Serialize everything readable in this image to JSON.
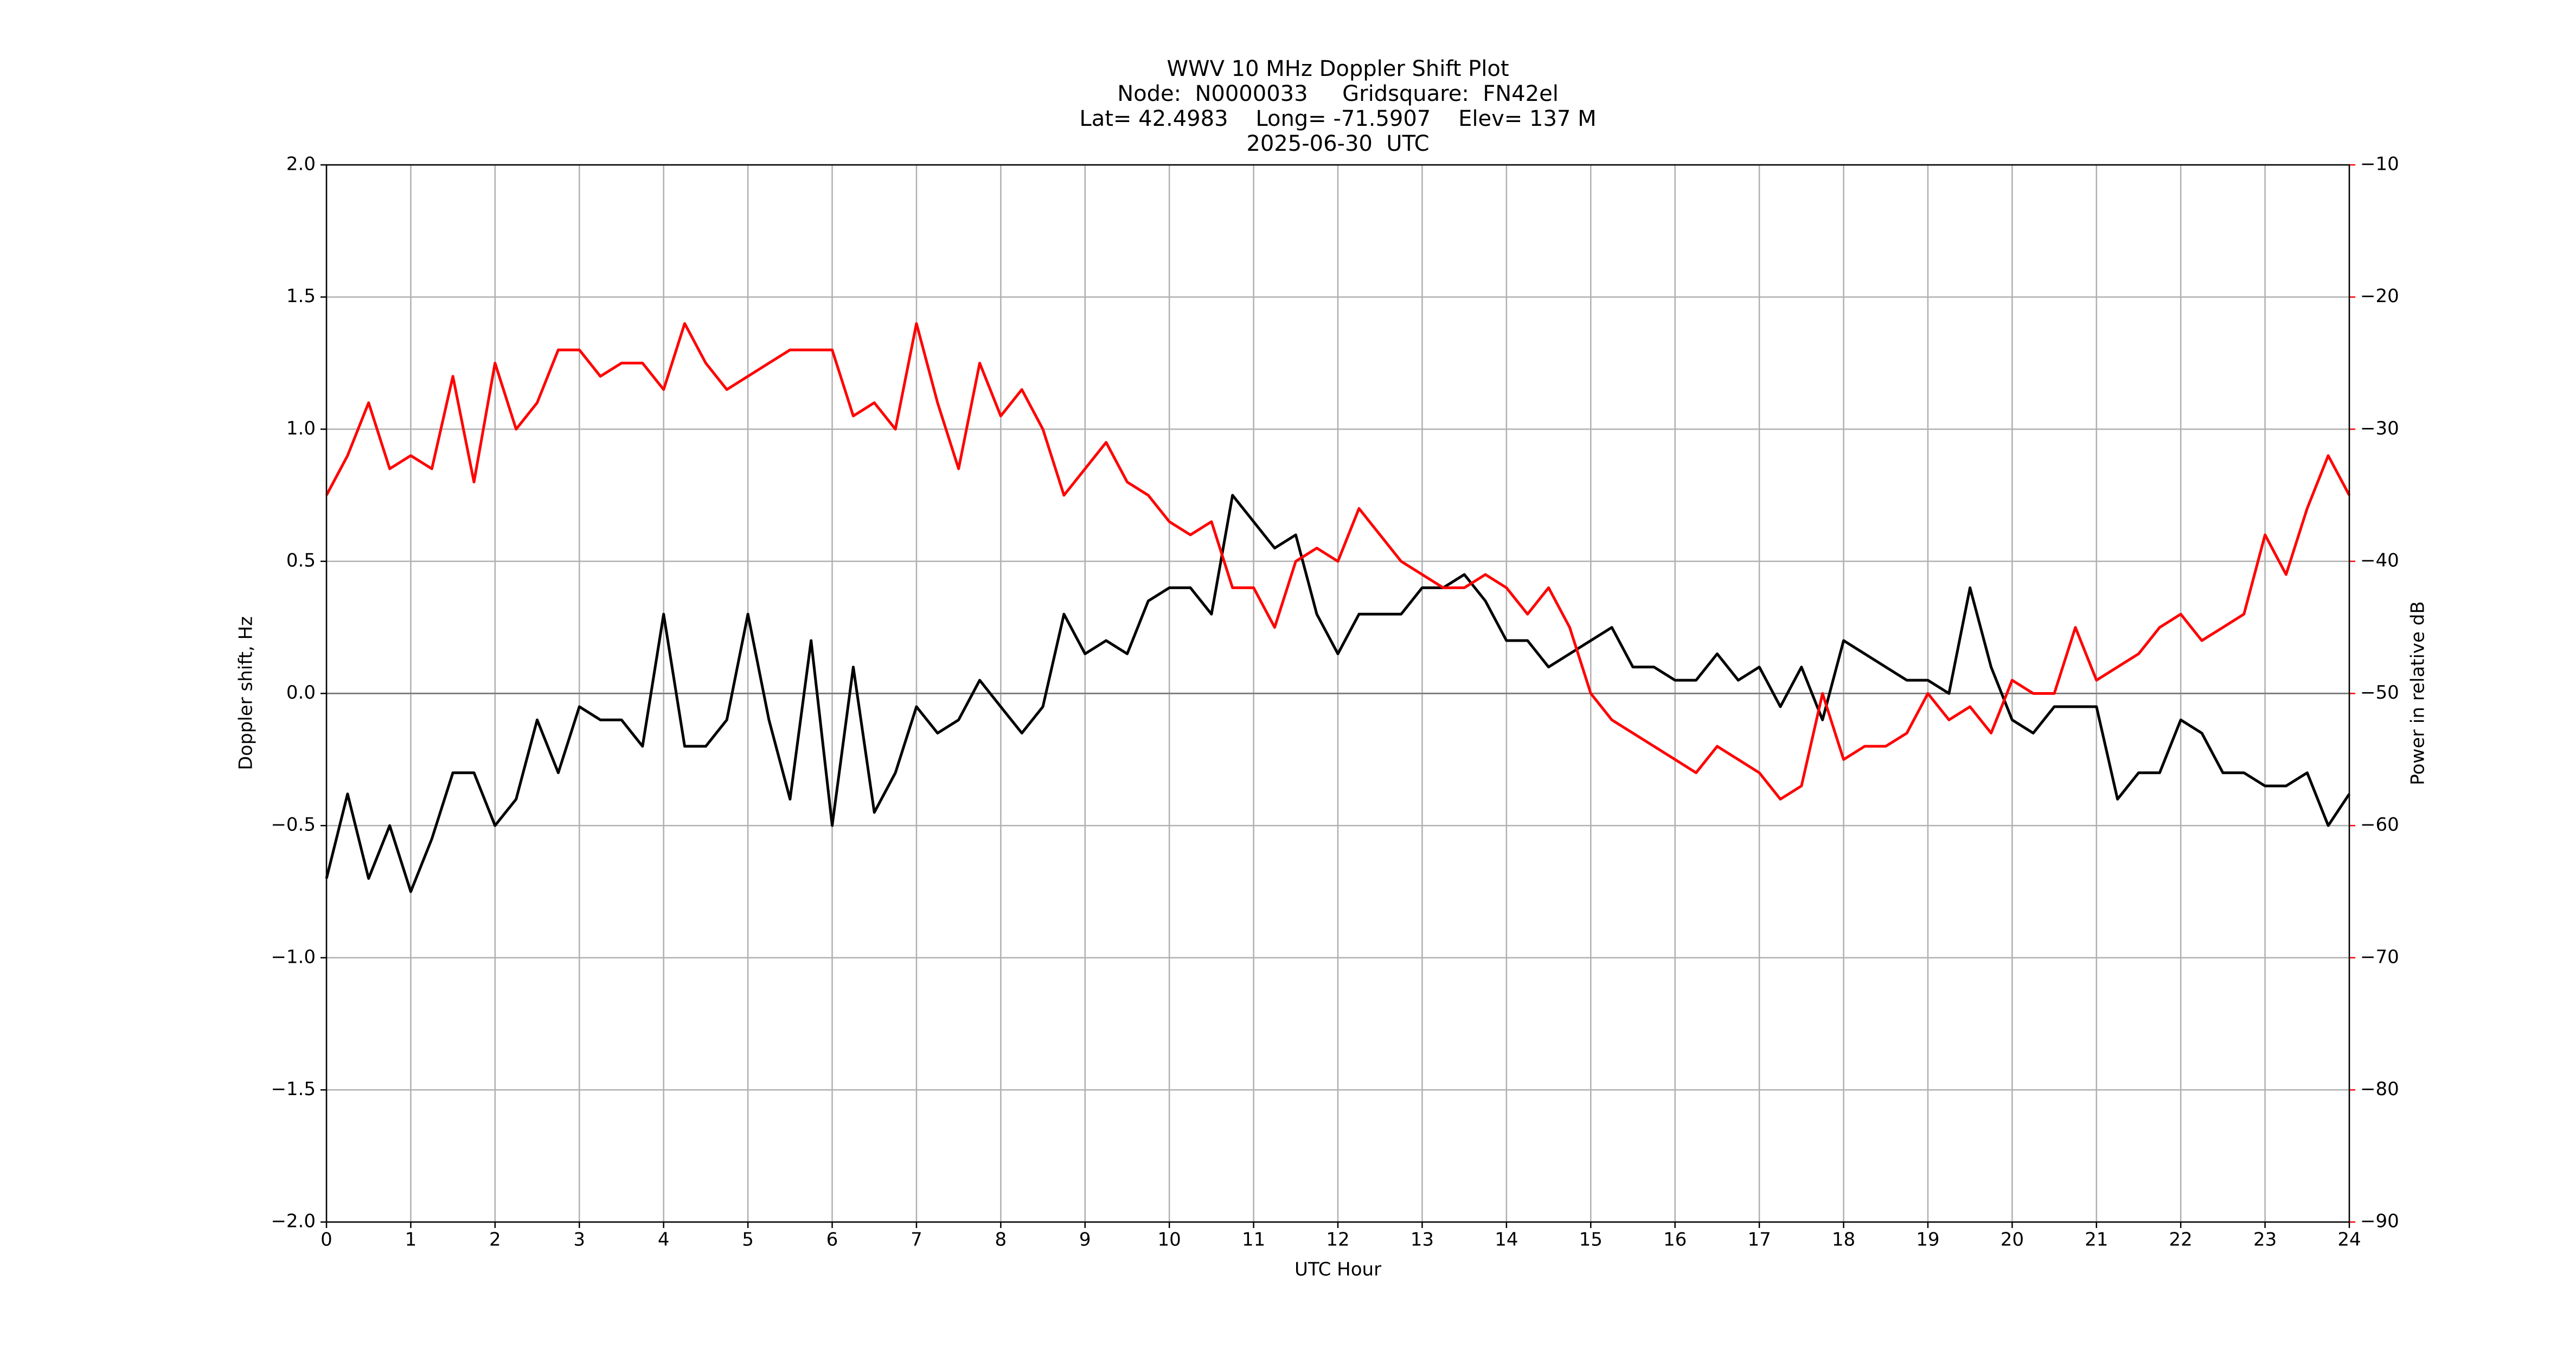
{
  "chart_data": {
    "type": "line",
    "title": [
      "WWV 10 MHz Doppler Shift Plot",
      "Node:  N0000033     Gridsquare:  FN42el",
      "Lat= 42.4983    Long= -71.5907    Elev= 137 M",
      "2025-06-30  UTC"
    ],
    "xlabel": "UTC Hour",
    "ylabel": "Doppler shift, Hz",
    "y2label": "Power in relative dB",
    "y2color": "#ff0000",
    "grid": true,
    "axhline": 0,
    "xlim": [
      0,
      24
    ],
    "xticks": [
      0,
      1,
      2,
      3,
      4,
      5,
      6,
      7,
      8,
      9,
      10,
      11,
      12,
      13,
      14,
      15,
      16,
      17,
      18,
      19,
      20,
      21,
      22,
      23,
      24
    ],
    "ylim": [
      -2,
      2
    ],
    "yticks": [
      {
        "value": -2,
        "label": "−2.0"
      },
      {
        "value": -1.5,
        "label": "−1.5"
      },
      {
        "value": -1,
        "label": "−1.0"
      },
      {
        "value": -0.5,
        "label": "−0.5"
      },
      {
        "value": 0,
        "label": "0.0"
      },
      {
        "value": 0.5,
        "label": "0.5"
      },
      {
        "value": 1,
        "label": "1.0"
      },
      {
        "value": 1.5,
        "label": "1.5"
      },
      {
        "value": 2,
        "label": "2.0"
      }
    ],
    "y2lim": [
      -90,
      -10
    ],
    "y2ticks": [
      {
        "value": -90,
        "label": "−90"
      },
      {
        "value": -80,
        "label": "−80"
      },
      {
        "value": -70,
        "label": "−70"
      },
      {
        "value": -60,
        "label": "−60"
      },
      {
        "value": -50,
        "label": "−50"
      },
      {
        "value": -40,
        "label": "−40"
      },
      {
        "value": -30,
        "label": "−30"
      },
      {
        "value": -20,
        "label": "−20"
      },
      {
        "value": -10,
        "label": "−10"
      }
    ],
    "x": [
      0,
      0.25,
      0.5,
      0.75,
      1,
      1.25,
      1.5,
      1.75,
      2,
      2.25,
      2.5,
      2.75,
      3,
      3.25,
      3.5,
      3.75,
      4,
      4.25,
      4.5,
      4.75,
      5,
      5.25,
      5.5,
      5.75,
      6,
      6.25,
      6.5,
      6.75,
      7,
      7.25,
      7.5,
      7.75,
      8,
      8.25,
      8.5,
      8.75,
      9,
      9.25,
      9.5,
      9.75,
      10,
      10.25,
      10.5,
      10.75,
      11,
      11.25,
      11.5,
      11.75,
      12,
      12.25,
      12.5,
      12.75,
      13,
      13.25,
      13.5,
      13.75,
      14,
      14.25,
      14.5,
      14.75,
      15,
      15.25,
      15.5,
      15.75,
      16,
      16.25,
      16.5,
      16.75,
      17,
      17.25,
      17.5,
      17.75,
      18,
      18.25,
      18.5,
      18.75,
      19,
      19.25,
      19.5,
      19.75,
      20,
      20.25,
      20.5,
      20.75,
      21,
      21.25,
      21.5,
      21.75,
      22,
      22.25,
      22.5,
      22.75,
      23,
      23.25,
      23.5,
      23.75,
      24
    ],
    "series": [
      {
        "color": "#000000",
        "values": [
          -0.7,
          -0.38,
          -0.7,
          -0.5,
          -0.75,
          -0.55,
          -0.3,
          -0.3,
          -0.5,
          -0.4,
          -0.1,
          -0.3,
          -0.05,
          -0.1,
          -0.1,
          -0.2,
          0.3,
          -0.2,
          -0.2,
          -0.1,
          0.3,
          -0.1,
          -0.4,
          0.2,
          -0.5,
          0.1,
          -0.45,
          -0.3,
          -0.05,
          -0.15,
          -0.1,
          0.05,
          -0.05,
          -0.15,
          -0.05,
          0.3,
          0.15,
          0.2,
          0.15,
          0.35,
          0.4,
          0.4,
          0.3,
          0.75,
          0.65,
          0.55,
          0.6,
          0.3,
          0.15,
          0.3,
          0.3,
          0.3,
          0.4,
          0.4,
          0.45,
          0.35,
          0.2,
          0.2,
          0.1,
          0.15,
          0.2,
          0.25,
          0.1,
          0.1,
          0.05,
          0.05,
          0.15,
          0.05,
          0.1,
          -0.05,
          0.1,
          -0.1,
          0.2,
          0.15,
          0.1,
          0.05,
          0.05,
          0,
          0.4,
          0.1,
          -0.1,
          -0.15,
          -0.05,
          -0.05,
          -0.05,
          -0.4,
          -0.3,
          -0.3,
          -0.1,
          -0.15,
          -0.3,
          -0.3,
          -0.35,
          -0.35,
          -0.3,
          -0.5,
          -0.38
        ]
      },
      {
        "color": "#ff0000",
        "axis": "y2",
        "values": [
          -35,
          -32,
          -28,
          -33,
          -32,
          -33,
          -26,
          -34,
          -25,
          -30,
          -28,
          -24,
          -24,
          -26,
          -25,
          -25,
          -27,
          -22,
          -25,
          -27,
          -26,
          -25,
          -24,
          -24,
          -24,
          -29,
          -28,
          -30,
          -22,
          -28,
          -33,
          -25,
          -29,
          -27,
          -30,
          -35,
          -33,
          -31,
          -34,
          -35,
          -37,
          -38,
          -37,
          -42,
          -42,
          -45,
          -40,
          -39,
          -40,
          -36,
          -38,
          -40,
          -41,
          -42,
          -42,
          -41,
          -42,
          -44,
          -42,
          -45,
          -50,
          -52,
          -53,
          -54,
          -55,
          -56,
          -54,
          -55,
          -56,
          -58,
          -57,
          -50,
          -55,
          -54,
          -54,
          -53,
          -50,
          -52,
          -51,
          -53,
          -49,
          -50,
          -50,
          -45,
          -49,
          -48,
          -47,
          -45,
          -44,
          -46,
          -45,
          -44,
          -38,
          -41,
          -36,
          -32,
          -35
        ]
      }
    ]
  }
}
